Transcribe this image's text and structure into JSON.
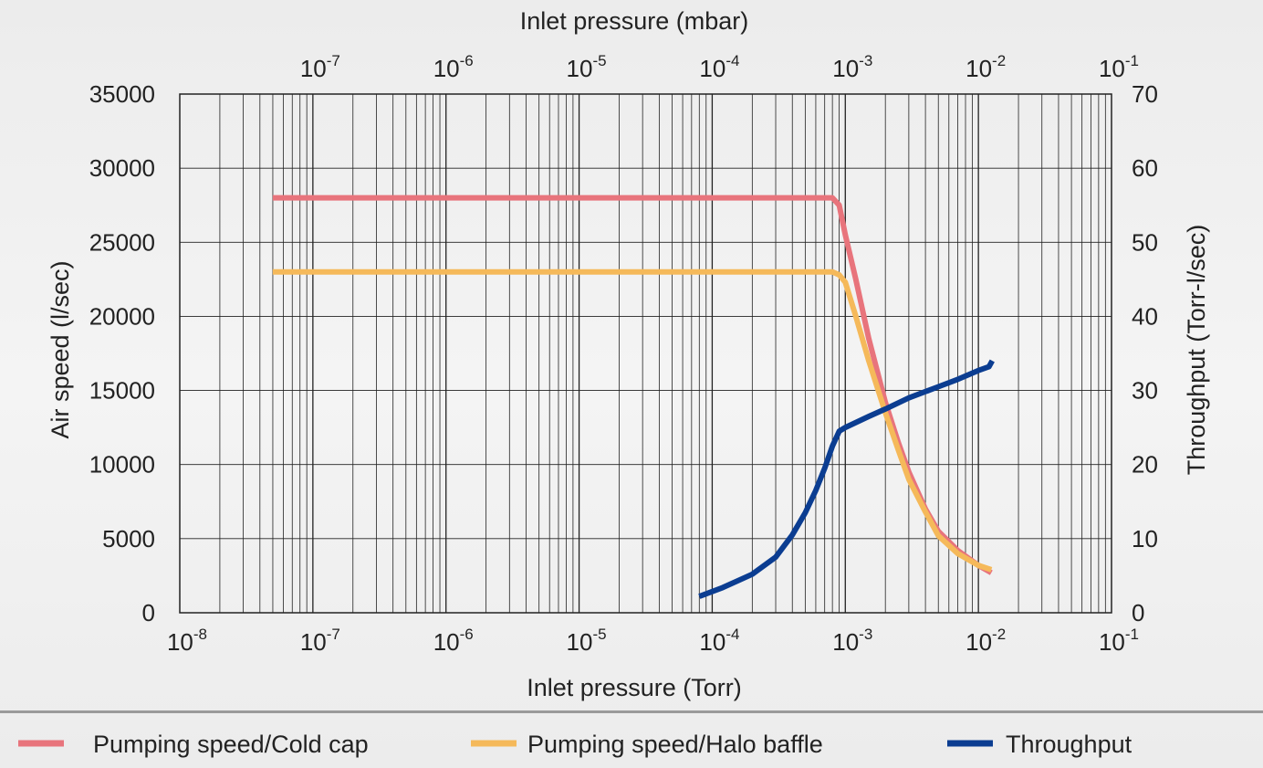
{
  "chart_data": {
    "type": "line",
    "x_scale": "log",
    "xlabel": "Inlet pressure (Torr)",
    "x2label": "Inlet pressure (mbar)",
    "ylabel": "Air speed (l/sec)",
    "y2label": "Throughput (Torr-l/sec)",
    "xlim": [
      1e-08,
      0.1
    ],
    "ylim": [
      0,
      35000
    ],
    "y2lim": [
      0,
      70
    ],
    "x_ticks": [
      {
        "base": "10",
        "exp": "-8"
      },
      {
        "base": "10",
        "exp": "-7"
      },
      {
        "base": "10",
        "exp": "-6"
      },
      {
        "base": "10",
        "exp": "-5"
      },
      {
        "base": "10",
        "exp": "-4"
      },
      {
        "base": "10",
        "exp": "-3"
      },
      {
        "base": "10",
        "exp": "-2"
      },
      {
        "base": "10",
        "exp": "-1"
      }
    ],
    "x2_ticks": [
      {
        "base": "10",
        "exp": "-7"
      },
      {
        "base": "10",
        "exp": "-6"
      },
      {
        "base": "10",
        "exp": "-5"
      },
      {
        "base": "10",
        "exp": "-4"
      },
      {
        "base": "10",
        "exp": "-3"
      },
      {
        "base": "10",
        "exp": "-2"
      },
      {
        "base": "10",
        "exp": "-1"
      }
    ],
    "y_ticks": [
      "0",
      "5000",
      "10000",
      "15000",
      "20000",
      "25000",
      "30000",
      "35000"
    ],
    "y2_ticks": [
      "0",
      "10",
      "20",
      "30",
      "40",
      "50",
      "60",
      "70"
    ],
    "grid": true,
    "legend_position": "bottom",
    "series": [
      {
        "name": "Pumping speed/Cold cap",
        "color": "#e8747c",
        "axis": "left",
        "points": [
          [
            5e-08,
            28000
          ],
          [
            1e-07,
            28000
          ],
          [
            1e-06,
            28000
          ],
          [
            1e-05,
            28000
          ],
          [
            0.0001,
            28000
          ],
          [
            0.0005,
            28000
          ],
          [
            0.0008,
            28000
          ],
          [
            0.0009,
            27500
          ],
          [
            0.001,
            25500
          ],
          [
            0.0012,
            22500
          ],
          [
            0.0015,
            18500
          ],
          [
            0.002,
            14200
          ],
          [
            0.0025,
            11500
          ],
          [
            0.003,
            9500
          ],
          [
            0.004,
            7000
          ],
          [
            0.005,
            5500
          ],
          [
            0.007,
            4200
          ],
          [
            0.01,
            3200
          ],
          [
            0.0125,
            2700
          ]
        ]
      },
      {
        "name": "Pumping speed/Halo baffle",
        "color": "#f5b95a",
        "axis": "left",
        "points": [
          [
            5e-08,
            23000
          ],
          [
            1e-07,
            23000
          ],
          [
            1e-06,
            23000
          ],
          [
            1e-05,
            23000
          ],
          [
            0.0001,
            23000
          ],
          [
            0.0005,
            23000
          ],
          [
            0.0008,
            23000
          ],
          [
            0.0009,
            22800
          ],
          [
            0.001,
            22300
          ],
          [
            0.0012,
            20000
          ],
          [
            0.0015,
            17000
          ],
          [
            0.002,
            13500
          ],
          [
            0.0025,
            11000
          ],
          [
            0.003,
            9000
          ],
          [
            0.004,
            6800
          ],
          [
            0.005,
            5200
          ],
          [
            0.007,
            4000
          ],
          [
            0.01,
            3200
          ],
          [
            0.0125,
            2900
          ]
        ]
      },
      {
        "name": "Throughput",
        "color": "#0b3d91",
        "axis": "right",
        "points": [
          [
            8e-05,
            2.2
          ],
          [
            0.00012,
            3.4
          ],
          [
            0.0002,
            5.2
          ],
          [
            0.0003,
            7.5
          ],
          [
            0.0004,
            10.5
          ],
          [
            0.0005,
            13.5
          ],
          [
            0.0006,
            16.5
          ],
          [
            0.0007,
            19.5
          ],
          [
            0.0008,
            22.5
          ],
          [
            0.0009,
            24.5
          ],
          [
            0.001,
            25
          ],
          [
            0.0015,
            26.5
          ],
          [
            0.002,
            27.5
          ],
          [
            0.003,
            29
          ],
          [
            0.005,
            30.5
          ],
          [
            0.007,
            31.5
          ],
          [
            0.01,
            32.7
          ],
          [
            0.012,
            33.2
          ],
          [
            0.0127,
            34
          ]
        ]
      }
    ]
  }
}
